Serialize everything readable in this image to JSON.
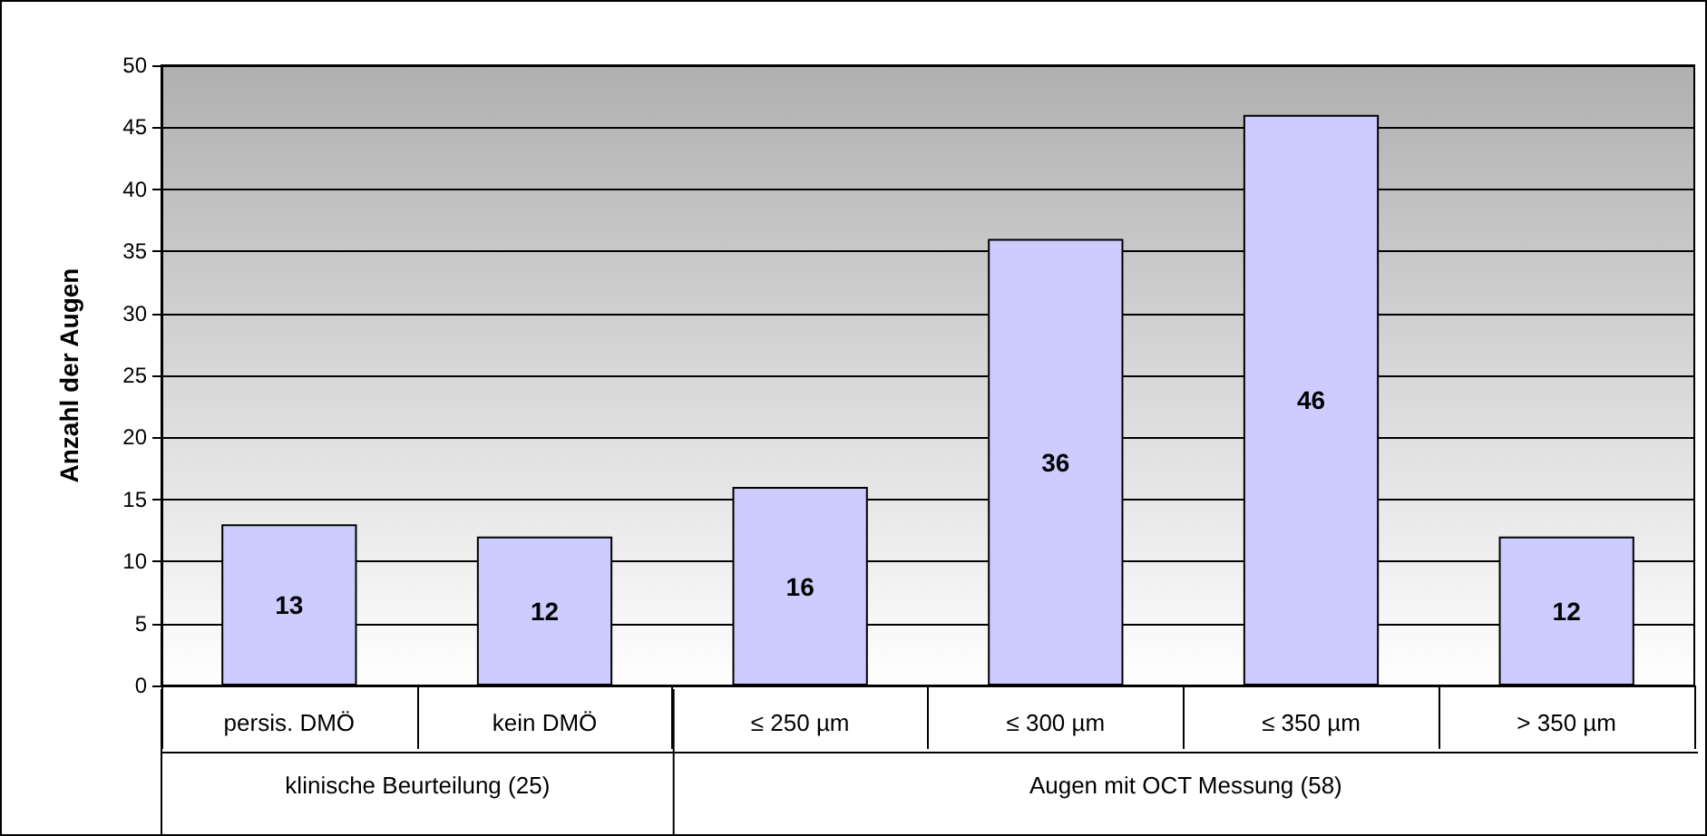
{
  "chart_data": {
    "type": "bar",
    "ylabel": "Anzahl der Augen",
    "categories": [
      "persis. DMÖ",
      "kein DMÖ",
      "≤ 250 µm",
      "≤ 300 µm",
      "≤ 350 µm",
      "> 350 µm"
    ],
    "values": [
      13,
      12,
      16,
      36,
      46,
      12
    ],
    "color": "#ccccff",
    "ylim": [
      0,
      50
    ],
    "yticks": [
      0,
      5,
      10,
      15,
      20,
      25,
      30,
      35,
      40,
      45,
      50
    ],
    "grid": "y",
    "data_labels": true,
    "annotations": [
      "klinische Beurteilung (25)",
      "Augen mit OCT Messung (58)"
    ]
  }
}
